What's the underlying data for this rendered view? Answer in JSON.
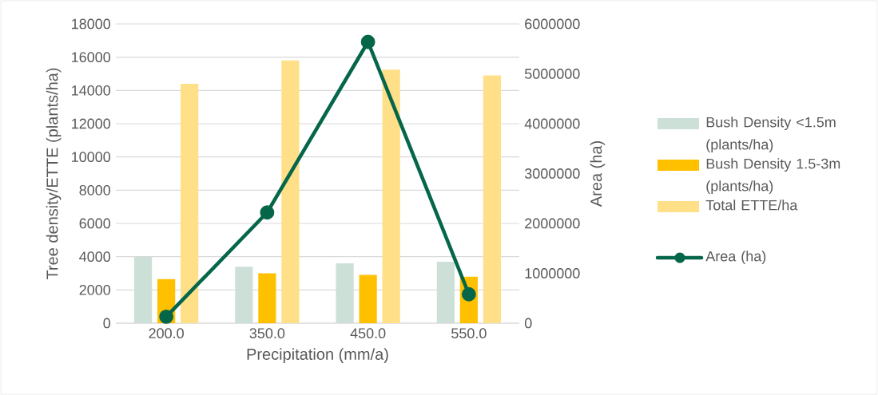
{
  "chart_data": {
    "type": "bar",
    "xlabel": "Precipitation (mm/a)",
    "ylabel": "Tree density/ETTE (plants/ha)",
    "y2label": "Area (ha)",
    "categories": [
      "200.0",
      "350.0",
      "450.0",
      "550.0"
    ],
    "series": [
      {
        "name": "Bush Density <1.5m (plants/ha)",
        "color": "#cde0d8",
        "values": [
          4000,
          3400,
          3600,
          3700
        ]
      },
      {
        "name": "Bush Density 1.5-3m (plants/ha)",
        "color": "#ffc000",
        "values": [
          2650,
          3000,
          2900,
          2800
        ]
      },
      {
        "name": "Total ETTE/ha",
        "color": "#ffdf88",
        "values": [
          14400,
          15800,
          15250,
          14900
        ]
      },
      {
        "name": "Area (ha)",
        "type": "line",
        "axis": "y2",
        "marker": "circle",
        "color": "#05664a",
        "values": [
          130000,
          2220000,
          5640000,
          580000
        ]
      }
    ],
    "ylim": [
      0,
      18000
    ],
    "yticks": [
      0,
      2000,
      4000,
      6000,
      8000,
      10000,
      12000,
      14000,
      16000,
      18000
    ],
    "y2lim": [
      0,
      6000000
    ],
    "y2ticks": [
      0,
      1000000,
      2000000,
      3000000,
      4000000,
      5000000,
      6000000
    ],
    "grid": "y",
    "legend": "right"
  }
}
